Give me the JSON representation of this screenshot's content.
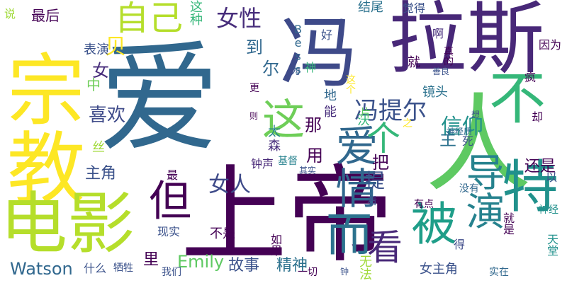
{
  "wordcloud": {
    "background": "#ffffff",
    "palette": [
      "#440154",
      "#3b528b",
      "#21918c",
      "#5ec962",
      "#fde725"
    ],
    "words": [
      {
        "text": "爱",
        "color": "#31688e"
      },
      {
        "text": "上帝",
        "color": "#440154"
      },
      {
        "text": "人",
        "color": "#5ec962"
      },
      {
        "text": "宗教",
        "color": "#fde725"
      },
      {
        "text": "拉斯",
        "color": "#482878"
      },
      {
        "text": "电影",
        "color": "#b5de2b"
      },
      {
        "text": "冯",
        "color": "#3e4a89"
      },
      {
        "text": "不",
        "color": "#35b779"
      },
      {
        "text": "特",
        "color": "#21918c"
      },
      {
        "text": "爱情",
        "color": "#31688e"
      },
      {
        "text": "但",
        "color": "#440154"
      },
      {
        "text": "导演",
        "color": "#26828e"
      },
      {
        "text": "这",
        "color": "#6ece58"
      },
      {
        "text": "被",
        "color": "#1f9e89"
      },
      {
        "text": "而",
        "color": "#2c728e"
      },
      {
        "text": "看",
        "color": "#482878"
      },
      {
        "text": "女人",
        "color": "#3e4a89"
      },
      {
        "text": "自己",
        "color": "#b5de2b"
      },
      {
        "text": "贝",
        "color": "#fde725"
      },
      {
        "text": "女性",
        "color": "#472d7b"
      },
      {
        "text": "个",
        "color": "#35b779"
      },
      {
        "text": "冯提尔",
        "color": "#3b528b"
      },
      {
        "text": "信仰",
        "color": "#21918c"
      },
      {
        "text": "喜欢",
        "color": "#3e4a89"
      },
      {
        "text": "主角",
        "color": "#3b528b"
      },
      {
        "text": "Watson",
        "color": "#31688e"
      },
      {
        "text": "Emily",
        "color": "#5ec962"
      },
      {
        "text": "故事",
        "color": "#3b528b"
      },
      {
        "text": "精神",
        "color": "#2c728e"
      },
      {
        "text": "还是",
        "color": "#440154"
      },
      {
        "text": "女主角",
        "color": "#3b528b"
      },
      {
        "text": "最后",
        "color": "#440154"
      },
      {
        "text": "结尾",
        "color": "#2c728e"
      },
      {
        "text": "觉得",
        "color": "#3b528b"
      },
      {
        "text": "表演",
        "color": "#3b528b"
      },
      {
        "text": "这种",
        "color": "#35b779"
      },
      {
        "text": "镜头",
        "color": "#2c728e"
      },
      {
        "text": "不是",
        "color": "#440154"
      },
      {
        "text": "什么",
        "color": "#3b528b"
      },
      {
        "text": "里",
        "color": "#440154"
      },
      {
        "text": "现实",
        "color": "#3b528b"
      },
      {
        "text": "钟声",
        "color": "#482878"
      },
      {
        "text": "基督",
        "color": "#26828e"
      },
      {
        "text": "那",
        "color": "#440154"
      },
      {
        "text": "用",
        "color": "#440154"
      },
      {
        "text": "把",
        "color": "#440154"
      },
      {
        "text": "提",
        "color": "#3b528b"
      },
      {
        "text": "主",
        "color": "#2c728e"
      },
      {
        "text": "到",
        "color": "#31688e"
      },
      {
        "text": "尔",
        "color": "#31688e"
      },
      {
        "text": "女",
        "color": "#472d7b"
      },
      {
        "text": "中",
        "color": "#6ece58"
      },
      {
        "text": "太",
        "color": "#26828e"
      },
      {
        "text": "森",
        "color": "#472d7b"
      },
      {
        "text": "丝",
        "color": "#a0da39"
      },
      {
        "text": "地",
        "color": "#31688e"
      },
      {
        "text": "能",
        "color": "#472d7b"
      },
      {
        "text": "就",
        "color": "#440154"
      },
      {
        "text": "啊",
        "color": "#472d7b"
      },
      {
        "text": "因为",
        "color": "#440154"
      },
      {
        "text": "疯",
        "color": "#440154"
      },
      {
        "text": "却",
        "color": "#440154"
      },
      {
        "text": "以",
        "color": "#3b528b"
      },
      {
        "text": "没有",
        "color": "#31688e"
      },
      {
        "text": "有点",
        "color": "#440154"
      },
      {
        "text": "就是",
        "color": "#440154"
      },
      {
        "text": "神经",
        "color": "#21918c"
      },
      {
        "text": "天堂",
        "color": "#21918c"
      },
      {
        "text": "实在",
        "color": "#31688e"
      },
      {
        "text": "得",
        "color": "#3e4a89"
      },
      {
        "text": "一切",
        "color": "#440154"
      },
      {
        "text": "钟",
        "color": "#3b528b"
      },
      {
        "text": "无法",
        "color": "#a0da39"
      },
      {
        "text": "如果",
        "color": "#440154"
      },
      {
        "text": "我们",
        "color": "#3b528b"
      },
      {
        "text": "牺牲",
        "color": "#3b528b"
      },
      {
        "text": "其实",
        "color": "#3b528b"
      },
      {
        "text": "最",
        "color": "#440154"
      },
      {
        "text": "看",
        "color": "#3b528b"
      },
      {
        "text": "死",
        "color": "#3b528b"
      },
      {
        "text": "神经质",
        "color": "#31688e"
      },
      {
        "text": "之",
        "color": "#fde725"
      },
      {
        "text": "想",
        "color": "#3b528b"
      },
      {
        "text": "则",
        "color": "#440154"
      },
      {
        "text": "沃",
        "color": "#35b779"
      },
      {
        "text": "更",
        "color": "#440154"
      },
      {
        "text": "为",
        "color": "#3b528b"
      },
      {
        "text": "神",
        "color": "#35b779"
      },
      {
        "text": "Bess",
        "color": "#31688e"
      },
      {
        "text": "好",
        "color": "#3b528b"
      },
      {
        "text": "这个",
        "color": "#fde725"
      },
      {
        "text": "真的",
        "color": "#440154"
      },
      {
        "text": "善良",
        "color": "#3b528b"
      },
      {
        "text": "说",
        "color": "#a0da39"
      },
      {
        "text": "片",
        "color": "#5ec962"
      }
    ]
  }
}
